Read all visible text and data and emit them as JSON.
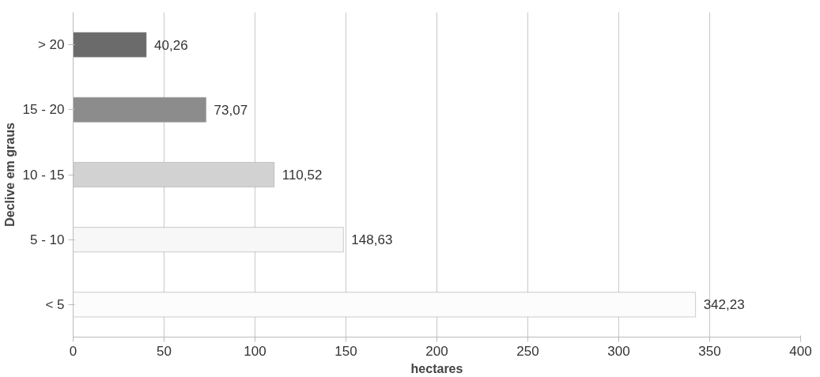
{
  "chart_data": {
    "type": "bar",
    "orientation": "horizontal",
    "xlabel": "hectares",
    "ylabel": "Declive em graus",
    "categories": [
      "> 20",
      "15 - 20",
      "10 - 15",
      "5 - 10",
      "< 5"
    ],
    "values": [
      40.26,
      73.07,
      110.52,
      148.63,
      342.23
    ],
    "colors": [
      "#6b6b6b",
      "#8c8c8c",
      "#d2d2d2",
      "#f7f7f7",
      "#fcfcfc"
    ],
    "value_labels": [
      "40,26",
      "73,07",
      "110,52",
      "148,63",
      "342,23"
    ],
    "xlim": [
      0,
      400
    ],
    "xticks": [
      0,
      50,
      100,
      150,
      200,
      250,
      300,
      350,
      400
    ],
    "grid": "x"
  }
}
